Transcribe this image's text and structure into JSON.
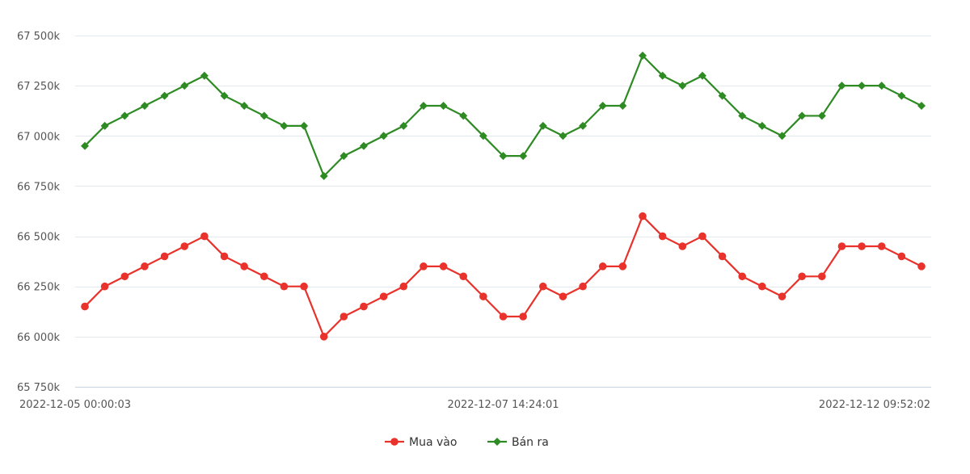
{
  "chart_data": {
    "type": "line",
    "title": "",
    "xlabel": "",
    "ylabel": "",
    "ylim": [
      65750,
      67500
    ],
    "yticks": [
      65750,
      66000,
      66250,
      66500,
      66750,
      67000,
      67250,
      67500
    ],
    "ytick_labels": [
      "65 750k",
      "66 000k",
      "66 250k",
      "66 500k",
      "66 750k",
      "67 000k",
      "67 250k",
      "67 500k"
    ],
    "xtick_labels": [
      {
        "index": 0,
        "label": "2022-12-05 00:00:03"
      },
      {
        "index": 21,
        "label": "2022-12-07 14:24:01"
      },
      {
        "index": 42,
        "label": "2022-12-12 09:52:02"
      }
    ],
    "grid": true,
    "legend_position": "bottom-center",
    "series": [
      {
        "name": "Mua vào",
        "color": "#e8322b",
        "marker": "circle",
        "values": [
          66150,
          66250,
          66300,
          66350,
          66400,
          66450,
          66500,
          66400,
          66350,
          66300,
          66250,
          66250,
          66000,
          66100,
          66150,
          66200,
          66250,
          66350,
          66350,
          66300,
          66200,
          66100,
          66100,
          66250,
          66200,
          66250,
          66350,
          66350,
          66600,
          66500,
          66450,
          66500,
          66400,
          66300,
          66250,
          66200,
          66300,
          66300,
          66450,
          66450,
          66450,
          66400,
          66350
        ]
      },
      {
        "name": "Bán ra",
        "color": "#2e8b23",
        "marker": "diamond",
        "values": [
          66950,
          67050,
          67100,
          67150,
          67200,
          67250,
          67300,
          67200,
          67150,
          67100,
          67050,
          67050,
          66800,
          66900,
          66950,
          67000,
          67050,
          67150,
          67150,
          67100,
          67000,
          66900,
          66900,
          67050,
          67000,
          67050,
          67150,
          67150,
          67400,
          67300,
          67250,
          67300,
          67200,
          67100,
          67050,
          67000,
          67100,
          67100,
          67250,
          67250,
          67250,
          67200,
          67150
        ]
      }
    ]
  }
}
